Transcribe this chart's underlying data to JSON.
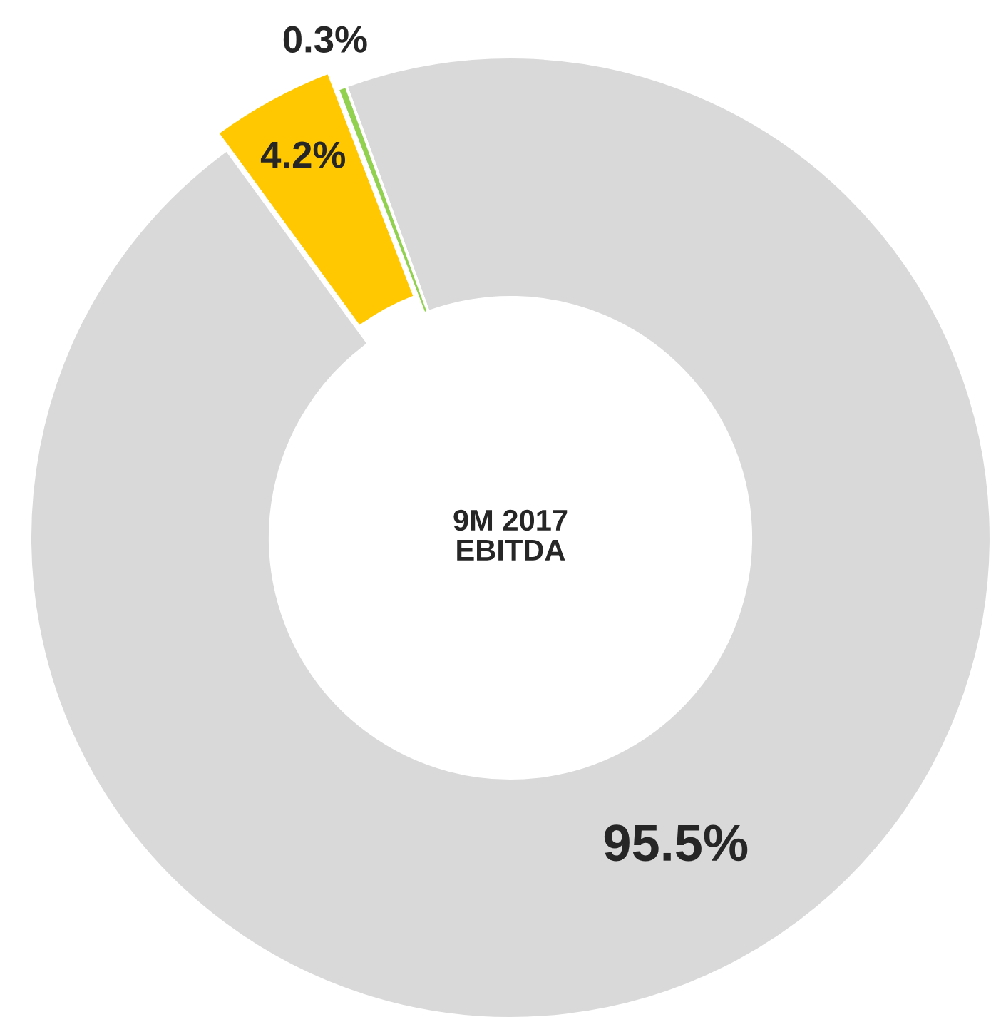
{
  "chart_data": {
    "type": "donut",
    "title": "9M 2017\nEBITDA",
    "categories": [
      null,
      null,
      null
    ],
    "values": [
      95.5,
      4.2,
      0.3
    ],
    "colors": [
      "#d9d9d9",
      "#ffc800",
      "#92d050"
    ],
    "value_labels": [
      "95.5%",
      "4.2%",
      "0.3%"
    ],
    "legend": false
  }
}
